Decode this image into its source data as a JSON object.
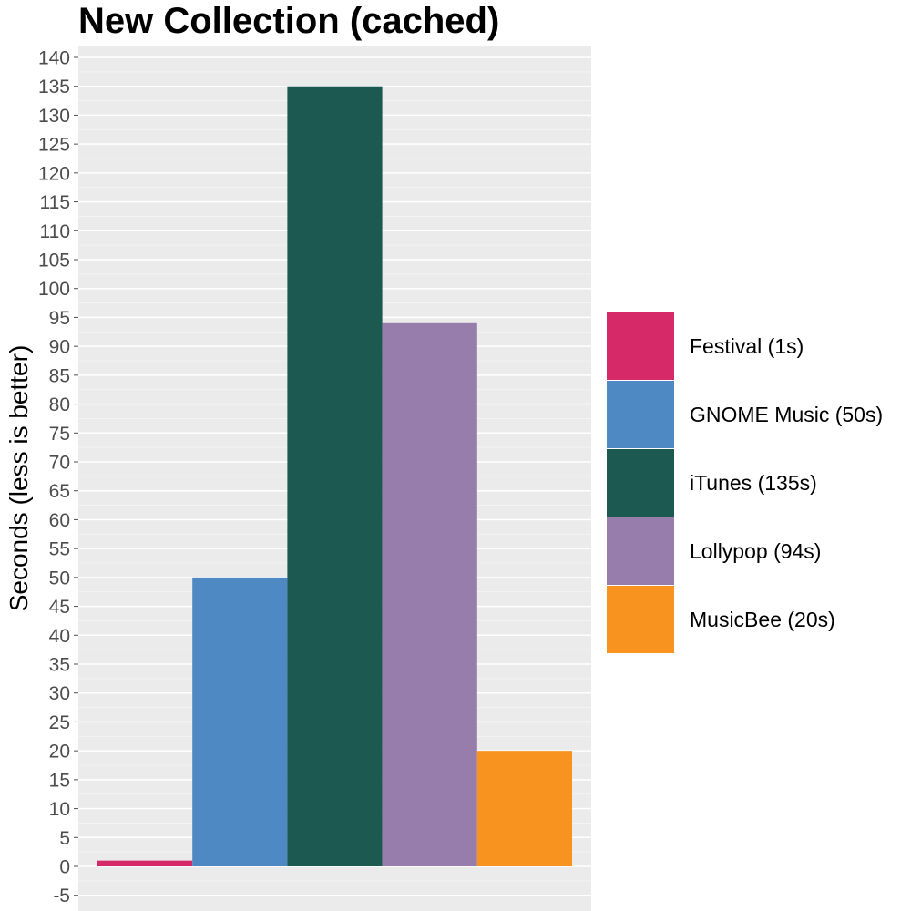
{
  "chart_data": {
    "type": "bar",
    "title": "New Collection (cached)",
    "xlabel": "",
    "ylabel": "Seconds (less is better)",
    "ylim": [
      -5,
      140
    ],
    "y_ticks": [
      -5,
      0,
      5,
      10,
      15,
      20,
      25,
      30,
      35,
      40,
      45,
      50,
      55,
      60,
      65,
      70,
      75,
      80,
      85,
      90,
      95,
      100,
      105,
      110,
      115,
      120,
      125,
      130,
      135,
      140
    ],
    "grid": true,
    "legend_position": "right",
    "series": [
      {
        "name": "Festival (1s)",
        "value": 1,
        "color": "#d62a68"
      },
      {
        "name": "GNOME Music (50s)",
        "value": 50,
        "color": "#4f89c3"
      },
      {
        "name": "iTunes (135s)",
        "value": 135,
        "color": "#1c5951"
      },
      {
        "name": "Lollypop (94s)",
        "value": 94,
        "color": "#967dac"
      },
      {
        "name": "MusicBee (20s)",
        "value": 20,
        "color": "#f9931f"
      }
    ]
  }
}
